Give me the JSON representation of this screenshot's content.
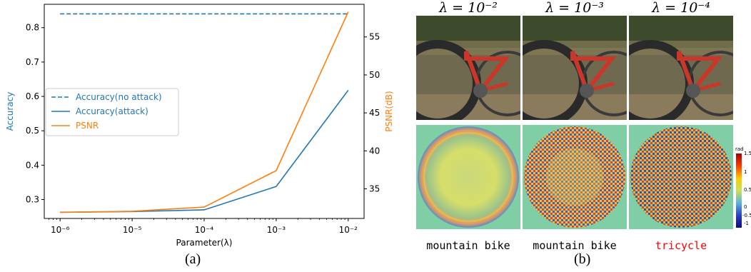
{
  "chart_data": {
    "type": "line",
    "x": [
      1e-06,
      1e-05,
      0.0001,
      0.001,
      0.01
    ],
    "xlabel": "Parameter(λ)",
    "ylabel_left": "Accuracy",
    "ylabel_right": "PSNR(dB)",
    "x_scale": "log",
    "x_ticks": [
      "10⁻⁶",
      "10⁻⁵",
      "10⁻⁴",
      "10⁻³",
      "10⁻²"
    ],
    "ylim_left": [
      0.245,
      0.868
    ],
    "yticks_left": [
      "0.3",
      "0.4",
      "0.5",
      "0.6",
      "0.7",
      "0.8"
    ],
    "ylim_right": [
      31.1,
      59.3
    ],
    "yticks_right": [
      "35",
      "40",
      "45",
      "50",
      "55"
    ],
    "grid": false,
    "legend_position": "center-left",
    "series": [
      {
        "name": "Accuracy(no attack)",
        "axis": "left",
        "style": "dashed",
        "color": "#1f77b4",
        "values": [
          0.84,
          0.84,
          0.84,
          0.84,
          0.84
        ]
      },
      {
        "name": "Accuracy(attack)",
        "axis": "left",
        "style": "solid",
        "color": "#1f77b4",
        "values": [
          0.263,
          0.265,
          0.27,
          0.338,
          0.618
        ]
      },
      {
        "name": "PSNR",
        "axis": "right",
        "style": "solid",
        "color": "#ff7f0e",
        "values": [
          31.9,
          32.05,
          32.6,
          37.4,
          58.3
        ]
      }
    ]
  },
  "captions": {
    "a": "(a)",
    "b": "(b)"
  },
  "panel_b": {
    "columns": [
      {
        "lambda_label": "λ = 10⁻²",
        "prediction": "mountain bike",
        "prediction_color": "#000000"
      },
      {
        "lambda_label": "λ = 10⁻³",
        "prediction": "mountain bike",
        "prediction_color": "#000000"
      },
      {
        "lambda_label": "λ = 10⁻⁴",
        "prediction": "tricycle",
        "prediction_color": "#ff0000"
      }
    ],
    "colorbar": {
      "unit": "rad",
      "ticks": [
        "1.5",
        "1",
        "0.5",
        "0",
        "-0.5",
        "-1"
      ]
    }
  }
}
